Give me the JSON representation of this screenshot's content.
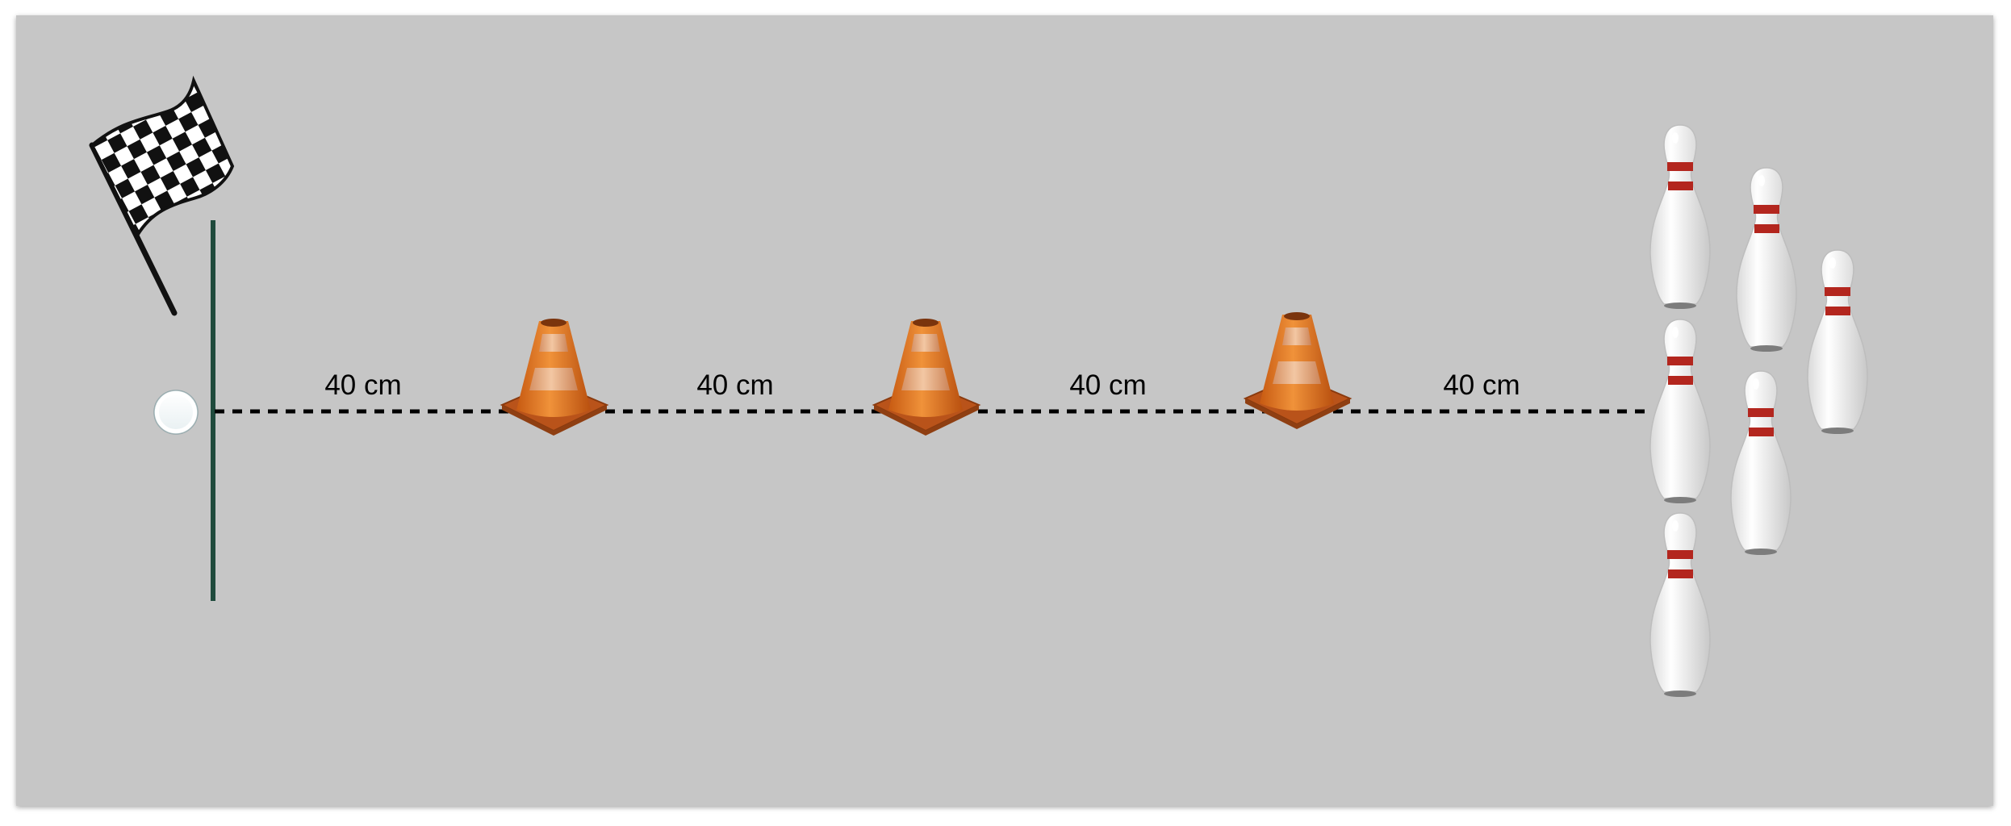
{
  "diagram": {
    "distance_labels": [
      "40 cm",
      "40 cm",
      "40 cm",
      "40 cm"
    ],
    "icons": {
      "flag": "checkered-flag-icon",
      "ball": "ball-icon",
      "cone": "traffic-cone-icon",
      "pin": "bowling-pin-icon"
    },
    "colors": {
      "background": "#c6c6c6",
      "start_line": "#1f4a3c",
      "path": "#000000",
      "cone": "#e07a1e",
      "pin_stripe": "#b3261e"
    }
  }
}
